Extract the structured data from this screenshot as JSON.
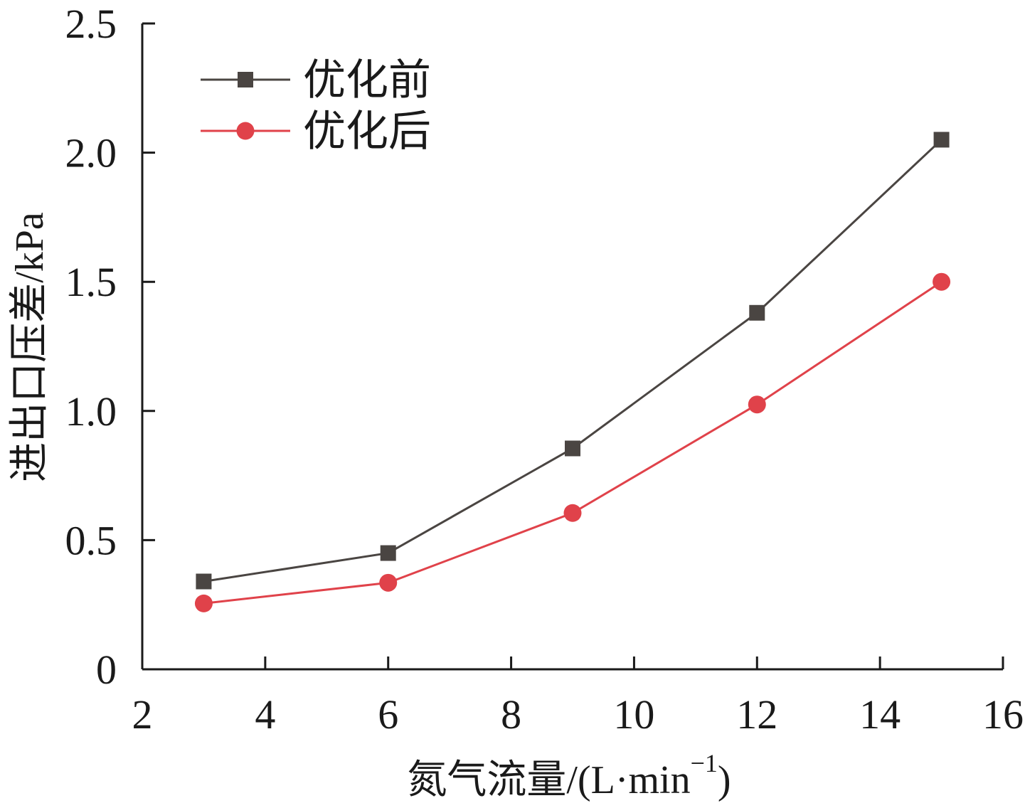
{
  "chart_data": {
    "type": "line",
    "title": "",
    "xlabel": "氮气流量/(L·min",
    "xlabel_sup": "−1",
    "xlabel_close": ")",
    "ylabel": "进出口压差/kPa",
    "xlim": [
      2,
      16
    ],
    "ylim": [
      0,
      2.5
    ],
    "x_ticks": [
      2,
      4,
      6,
      8,
      10,
      12,
      14,
      16
    ],
    "x_tick_labels": [
      "2",
      "4",
      "6",
      "8",
      "10",
      "12",
      "14",
      "16"
    ],
    "y_ticks": [
      0,
      0.5,
      1.0,
      1.5,
      2.0,
      2.5
    ],
    "y_tick_labels": [
      "0",
      "0.5",
      "1.0",
      "1.5",
      "2.0",
      "2.5"
    ],
    "grid": false,
    "legend_position": "top-left",
    "x": [
      3,
      6,
      9,
      12,
      15
    ],
    "series": [
      {
        "name": "优化前",
        "values": [
          0.34,
          0.45,
          0.855,
          1.38,
          2.05
        ],
        "color": "#4a4542",
        "marker": "square"
      },
      {
        "name": "优化后",
        "values": [
          0.255,
          0.335,
          0.605,
          1.025,
          1.5
        ],
        "color": "#e0424a",
        "marker": "circle"
      }
    ]
  }
}
